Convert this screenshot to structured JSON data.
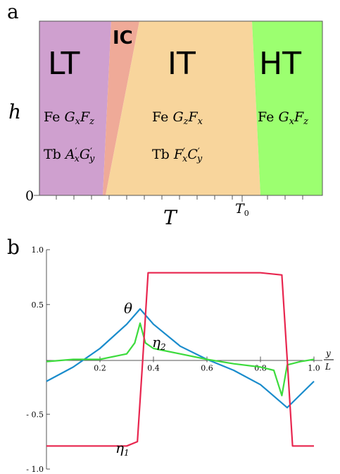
{
  "panel_a": {
    "letter": "a",
    "regions": [
      {
        "id": "LT",
        "label": "LT",
        "color": "#cfa0cf",
        "fe": "Fe G_x F_z",
        "tb": "Tb A′_x G′_y"
      },
      {
        "id": "IC",
        "label": "IC",
        "color": "#efaa98",
        "fe": "",
        "tb": ""
      },
      {
        "id": "IT",
        "label": "IT",
        "color": "#f8d59c",
        "fe": "Fe G_z F_x",
        "tb": "Tb F′_x C′_y"
      },
      {
        "id": "HT",
        "label": "HT",
        "color": "#9cff70",
        "fe": "Fe G_x F_z",
        "tb": ""
      }
    ],
    "y_axis_symbol": "h",
    "x_axis_symbol": "T",
    "y_zero_label": "0",
    "x_marker_label": "T0"
  },
  "panel_b": {
    "letter": "b",
    "x_axis_label_top": "y",
    "x_axis_label_bottom": "L",
    "curve_labels": {
      "theta": "θ",
      "eta2": "η2",
      "eta1": "η1"
    },
    "chart_data": {
      "type": "line",
      "title": "",
      "xlabel": "y/L",
      "ylabel": "",
      "xlim": [
        0,
        1
      ],
      "ylim": [
        -1.0,
        1.0
      ],
      "x_ticks": [
        "0.2",
        "0.4",
        "0.6",
        "0.8",
        "1.0"
      ],
      "x_tick_values": [
        0.2,
        0.4,
        0.6,
        0.8,
        1.0
      ],
      "y_ticks": [
        "1.0",
        "0.5",
        "- 0.5",
        "- 1.0"
      ],
      "y_tick_values": [
        1.0,
        0.5,
        -0.5,
        -1.0
      ],
      "series": [
        {
          "name": "θ",
          "color": "#1a8ccc",
          "x": [
            0.0,
            0.1,
            0.2,
            0.3,
            0.35,
            0.4,
            0.5,
            0.6,
            0.7,
            0.8,
            0.9,
            1.0
          ],
          "y": [
            -0.2,
            -0.07,
            0.1,
            0.32,
            0.46,
            0.32,
            0.12,
            0.0,
            -0.1,
            -0.23,
            -0.44,
            -0.2
          ]
        },
        {
          "name": "η2",
          "color": "#3ddb3d",
          "x": [
            0.0,
            0.1,
            0.2,
            0.3,
            0.33,
            0.35,
            0.37,
            0.4,
            0.5,
            0.6,
            0.7,
            0.8,
            0.85,
            0.88,
            0.9,
            0.95,
            1.0
          ],
          "y": [
            -0.02,
            0.0,
            0.0,
            0.05,
            0.15,
            0.33,
            0.15,
            0.1,
            0.05,
            0.0,
            -0.04,
            -0.07,
            -0.1,
            -0.33,
            -0.05,
            -0.02,
            0.0
          ]
        },
        {
          "name": "η1",
          "color": "#e8264f",
          "x": [
            0.0,
            0.1,
            0.2,
            0.3,
            0.34,
            0.36,
            0.38,
            0.5,
            0.6,
            0.7,
            0.8,
            0.88,
            0.9,
            0.92,
            1.0
          ],
          "y": [
            -0.79,
            -0.79,
            -0.79,
            -0.79,
            -0.75,
            0.0,
            0.79,
            0.79,
            0.79,
            0.79,
            0.79,
            0.77,
            0.0,
            -0.79,
            -0.79
          ]
        }
      ]
    }
  }
}
